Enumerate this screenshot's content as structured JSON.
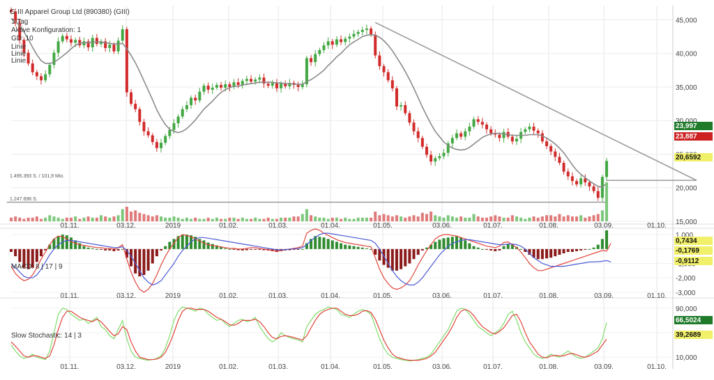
{
  "chart_data": {
    "type": "candlestick",
    "title": "G-III Apparel Group Ltd (890380) (GIII)",
    "legend_lines": [
      "1 Tag",
      "Aktive Konfiguration: 1",
      "GD: 10",
      "Linie",
      "Linie",
      "Linie"
    ],
    "x_tick_labels": [
      "01.11.",
      "03.12.",
      "2019",
      "01.02.",
      "01.03.",
      "01.04.",
      "01.05.",
      "03.06.",
      "01.07.",
      "01.08.",
      "03.09.",
      "01.10."
    ],
    "y_tick_labels": [
      "45,000",
      "40,000",
      "35,000",
      "30,000",
      "25,000",
      "20,000",
      "15,000"
    ],
    "ylim": [
      15000,
      46500
    ],
    "price_badges": [
      {
        "text": "23,997",
        "color": "#1f7a2a",
        "text_color": "#ffffff"
      },
      {
        "text": "23,887",
        "color": "#cc2222",
        "text_color": "#ffffff"
      },
      {
        "text": "20,6592",
        "color": "#f1f06a",
        "text_color": "#111111"
      }
    ],
    "volume_labels": [
      "1.495.393 S. / 101,9 Mio.",
      "1.247.696 S."
    ],
    "closes": [
      46200,
      44500,
      42000,
      40100,
      38500,
      37200,
      36600,
      36000,
      36900,
      38300,
      40100,
      41800,
      42600,
      42100,
      41600,
      42000,
      41200,
      41800,
      40900,
      42300,
      41400,
      41800,
      40800,
      41300,
      40300,
      41900,
      43600,
      34200,
      32500,
      31700,
      29800,
      28400,
      27800,
      26800,
      25900,
      26700,
      27700,
      28600,
      29600,
      30600,
      31700,
      32300,
      33400,
      33000,
      34300,
      35200,
      34600,
      34900,
      35300,
      34900,
      35400,
      35000,
      35700,
      35300,
      35900,
      36200,
      35800,
      36100,
      36400,
      35500,
      35200,
      35600,
      34800,
      35500,
      35100,
      35600,
      35300,
      35000,
      35400,
      39300,
      38700,
      39900,
      40500,
      41200,
      41800,
      41300,
      42100,
      41700,
      42200,
      42500,
      42900,
      43200,
      43500,
      43700,
      42800,
      39700,
      38100,
      37200,
      36000,
      34800,
      32100,
      32300,
      31100,
      29700,
      28400,
      27400,
      26100,
      24900,
      23900,
      24400,
      24700,
      25200,
      26600,
      27400,
      28100,
      27600,
      28400,
      29100,
      30200,
      29800,
      29400,
      28700,
      28100,
      27900,
      27400,
      28300,
      27600,
      26900,
      27300,
      28300,
      28700,
      29100,
      28500,
      28100,
      26900,
      26200,
      25400,
      24600,
      23700,
      22400,
      21700,
      21000,
      20500,
      21400,
      20800,
      20200,
      19500,
      18500,
      21600,
      23990
    ],
    "gd10": [
      45200,
      44800,
      44100,
      43200,
      42100,
      40900,
      39800,
      38900,
      38500,
      38500,
      38700,
      39100,
      39600,
      40100,
      40700,
      41200,
      41500,
      41600,
      41600,
      41700,
      41700,
      41700,
      41600,
      41500,
      41400,
      41400,
      41500,
      40700,
      39700,
      38600,
      37300,
      35900,
      34500,
      33100,
      31600,
      30400,
      29400,
      28700,
      28400,
      28200,
      28400,
      28800,
      29400,
      30100,
      30900,
      31700,
      32300,
      32900,
      33600,
      34200,
      34600,
      34900,
      35100,
      35100,
      35300,
      35400,
      35500,
      35600,
      35700,
      35700,
      35700,
      35700,
      35600,
      35600,
      35500,
      35500,
      35400,
      35400,
      35400,
      35800,
      36100,
      36500,
      37000,
      37500,
      38200,
      38800,
      39500,
      40000,
      40700,
      41300,
      41700,
      42100,
      42500,
      42700,
      42800,
      42700,
      42400,
      41900,
      41200,
      40400,
      39400,
      38400,
      37300,
      36100,
      34800,
      33400,
      32000,
      30700,
      29500,
      28400,
      27600,
      26800,
      26300,
      25900,
      25700,
      25600,
      25700,
      26000,
      26500,
      27000,
      27500,
      27800,
      28000,
      28100,
      28100,
      28000,
      27900,
      27800,
      27800,
      27800,
      27800,
      27900,
      27900,
      27900,
      27700,
      27400,
      27000,
      26500,
      25900,
      25200,
      24300,
      23400,
      22600,
      22000,
      21500,
      21000,
      20600,
      20200,
      20100,
      20660
    ],
    "trendline": {
      "from_index": 85,
      "from_value": 44600,
      "to_index": 160,
      "to_value": 21100
    },
    "horizontal_lines": [
      {
        "value": 21100,
        "from_index": 139,
        "to_index": 160
      },
      {
        "value": 17850,
        "from_index": -1,
        "to_index": 139
      }
    ],
    "volumes": [
      3,
      4,
      3,
      2,
      3,
      3,
      4,
      2,
      3,
      5,
      4,
      3,
      2,
      3,
      3,
      4,
      2,
      3,
      4,
      3,
      3,
      5,
      4,
      3,
      4,
      5,
      10,
      12,
      8,
      9,
      7,
      6,
      5,
      4,
      5,
      4,
      3,
      3,
      4,
      3,
      2,
      3,
      2,
      3,
      2,
      2,
      3,
      2,
      3,
      2,
      2,
      3,
      3,
      2,
      3,
      2,
      2,
      3,
      2,
      2,
      3,
      2,
      2,
      3,
      3,
      3,
      4,
      4,
      6,
      10,
      5,
      4,
      3,
      3,
      2,
      3,
      3,
      2,
      3,
      2,
      2,
      3,
      3,
      3,
      3,
      8,
      5,
      6,
      5,
      4,
      5,
      4,
      3,
      4,
      5,
      4,
      7,
      6,
      8,
      5,
      4,
      3,
      5,
      4,
      3,
      4,
      3,
      3,
      6,
      4,
      3,
      3,
      4,
      5,
      4,
      3,
      3,
      5,
      4,
      3,
      2,
      3,
      4,
      3,
      4,
      5,
      5,
      4,
      6,
      4,
      5,
      4,
      4,
      5,
      3,
      4,
      5,
      6,
      9,
      32
    ],
    "macd": {
      "label": "MACD: 8 | 17 | 9",
      "y_tick_labels": [
        "1,000",
        "0",
        "-1,000",
        "-2,000",
        "-3,000"
      ],
      "ylim": [
        -3200,
        1200
      ],
      "badges": [
        {
          "text": "0,7434",
          "color": "#f1f06a"
        },
        {
          "text": "-0,1769",
          "color": "#f1f06a"
        },
        {
          "text": "-0,9112",
          "color": "#f1f06a"
        }
      ],
      "hist": [
        -200,
        -500,
        -900,
        -1300,
        -1400,
        -1300,
        -900,
        -500,
        -100,
        300,
        700,
        900,
        1000,
        950,
        800,
        600,
        400,
        200,
        100,
        50,
        0,
        -50,
        -100,
        -100,
        -150,
        -100,
        0,
        -600,
        -1200,
        -1700,
        -1900,
        -1800,
        -1500,
        -1000,
        -500,
        -100,
        200,
        500,
        700,
        900,
        1000,
        1000,
        950,
        850,
        700,
        600,
        450,
        350,
        250,
        150,
        50,
        0,
        -50,
        -80,
        -100,
        -80,
        -50,
        -30,
        -50,
        -80,
        -100,
        -150,
        -200,
        -150,
        -100,
        -80,
        -50,
        -20,
        0,
        400,
        700,
        900,
        850,
        800,
        700,
        600,
        500,
        400,
        300,
        250,
        200,
        150,
        100,
        50,
        0,
        -400,
        -800,
        -1100,
        -1300,
        -1500,
        -1500,
        -1400,
        -1200,
        -1000,
        -700,
        -400,
        -100,
        100,
        300,
        500,
        650,
        750,
        800,
        850,
        900,
        800,
        600,
        400,
        200,
        100,
        0,
        -50,
        -100,
        -150,
        -100,
        200,
        350,
        300,
        150,
        0,
        -200,
        -400,
        -600,
        -700,
        -700,
        -650,
        -600,
        -500,
        -400,
        -300,
        -200,
        -200,
        -150,
        -100,
        -50,
        0,
        100,
        300,
        700,
        1300
      ],
      "line_a": [
        -1200,
        -1700,
        -2000,
        -2200,
        -2100,
        -1800,
        -1300,
        -700,
        -200,
        300,
        700,
        900,
        850,
        700,
        500,
        400,
        300,
        250,
        200,
        150,
        100,
        100,
        50,
        50,
        0,
        100,
        300,
        -700,
        -1600,
        -2300,
        -2800,
        -3000,
        -2800,
        -2400,
        -1800,
        -1100,
        -500,
        0,
        400,
        800,
        1000,
        950,
        850,
        700,
        550,
        400,
        300,
        250,
        200,
        150,
        100,
        50,
        50,
        0,
        0,
        50,
        100,
        100,
        50,
        0,
        -50,
        -100,
        -150,
        -100,
        -50,
        0,
        50,
        100,
        200,
        1100,
        1300,
        1400,
        1300,
        1100,
        950,
        800,
        650,
        550,
        450,
        400,
        350,
        300,
        250,
        200,
        150,
        -600,
        -1400,
        -2000,
        -2400,
        -2700,
        -2800,
        -2700,
        -2500,
        -2200,
        -1700,
        -1100,
        -600,
        -100,
        300,
        700,
        900,
        1000,
        1000,
        950,
        900,
        800,
        700,
        600,
        500,
        400,
        300,
        200,
        150,
        100,
        200,
        450,
        500,
        300,
        100,
        -200,
        -600,
        -1000,
        -1300,
        -1500,
        -1500,
        -1400,
        -1300,
        -1200,
        -1100,
        -1000,
        -900,
        -800,
        -700,
        -600,
        -500,
        -400,
        -300,
        -200,
        -100,
        -150,
        400
      ],
      "line_b": [
        -1000,
        -1300,
        -1600,
        -1900,
        -2000,
        -2000,
        -1800,
        -1400,
        -900,
        -400,
        0,
        300,
        500,
        600,
        600,
        550,
        500,
        450,
        400,
        350,
        300,
        250,
        200,
        150,
        100,
        100,
        150,
        -100,
        -500,
        -1000,
        -1500,
        -2000,
        -2300,
        -2500,
        -2400,
        -2200,
        -1800,
        -1400,
        -1000,
        -500,
        -100,
        200,
        500,
        700,
        800,
        800,
        750,
        700,
        650,
        600,
        550,
        500,
        450,
        400,
        350,
        300,
        250,
        200,
        150,
        100,
        50,
        0,
        -50,
        -50,
        -50,
        0,
        0,
        50,
        100,
        300,
        600,
        800,
        1000,
        1100,
        1100,
        1050,
        1000,
        950,
        900,
        850,
        800,
        750,
        700,
        650,
        600,
        400,
        0,
        -500,
        -1000,
        -1500,
        -1900,
        -2200,
        -2400,
        -2500,
        -2500,
        -2300,
        -2000,
        -1600,
        -1200,
        -800,
        -400,
        -100,
        200,
        400,
        500,
        600,
        650,
        650,
        600,
        550,
        500,
        450,
        400,
        350,
        300,
        300,
        350,
        350,
        300,
        200,
        0,
        -300,
        -600,
        -800,
        -1000,
        -1100,
        -1200,
        -1200,
        -1200,
        -1200,
        -1150,
        -1100,
        -1050,
        -1000,
        -950,
        -900,
        -900,
        -880,
        -850,
        -800,
        -900
      ]
    },
    "stochastic": {
      "label": "Slow Stochastic: 14 | 3",
      "y_tick_labels": [
        "90,000",
        "50,000",
        "10,000"
      ],
      "ylim": [
        0,
        100
      ],
      "badges": [
        {
          "text": "66,5024",
          "color": "#1f7a2a"
        },
        {
          "text": "39,2689",
          "color": "#f1f06a"
        }
      ],
      "k": [
        30,
        20,
        12,
        8,
        10,
        15,
        10,
        8,
        6,
        20,
        50,
        80,
        90,
        88,
        80,
        75,
        70,
        72,
        65,
        70,
        75,
        60,
        55,
        45,
        40,
        55,
        70,
        40,
        20,
        10,
        8,
        6,
        5,
        6,
        8,
        12,
        25,
        45,
        70,
        85,
        92,
        90,
        88,
        85,
        90,
        88,
        80,
        75,
        70,
        72,
        65,
        60,
        65,
        70,
        72,
        68,
        70,
        75,
        60,
        50,
        40,
        35,
        40,
        50,
        45,
        42,
        40,
        38,
        35,
        60,
        70,
        80,
        85,
        88,
        92,
        90,
        88,
        80,
        78,
        75,
        80,
        85,
        88,
        85,
        80,
        60,
        40,
        25,
        15,
        10,
        8,
        6,
        5,
        4,
        5,
        6,
        8,
        10,
        15,
        25,
        35,
        45,
        55,
        70,
        85,
        90,
        88,
        80,
        70,
        60,
        55,
        50,
        45,
        50,
        55,
        65,
        80,
        85,
        70,
        50,
        35,
        25,
        15,
        10,
        8,
        10,
        15,
        12,
        10,
        15,
        20,
        15,
        10,
        8,
        10,
        15,
        20,
        25,
        40,
        66.5
      ],
      "d": [
        35,
        28,
        20,
        12,
        10,
        12,
        12,
        10,
        8,
        12,
        30,
        55,
        75,
        85,
        85,
        80,
        75,
        72,
        70,
        68,
        72,
        68,
        60,
        52,
        45,
        48,
        60,
        55,
        35,
        20,
        10,
        8,
        6,
        6,
        7,
        10,
        18,
        32,
        50,
        70,
        85,
        90,
        90,
        88,
        88,
        88,
        85,
        80,
        75,
        72,
        68,
        63,
        62,
        65,
        70,
        70,
        70,
        72,
        68,
        60,
        50,
        42,
        40,
        44,
        45,
        44,
        42,
        40,
        38,
        45,
        58,
        70,
        80,
        85,
        88,
        90,
        90,
        85,
        80,
        78,
        78,
        80,
        85,
        86,
        83,
        72,
        55,
        38,
        25,
        15,
        10,
        8,
        6,
        5,
        5,
        5,
        6,
        8,
        12,
        18,
        28,
        38,
        48,
        60,
        75,
        85,
        88,
        85,
        78,
        68,
        60,
        55,
        50,
        48,
        52,
        58,
        68,
        78,
        80,
        68,
        50,
        35,
        25,
        15,
        10,
        9,
        12,
        13,
        12,
        12,
        15,
        16,
        14,
        11,
        10,
        12,
        16,
        20,
        30,
        39.3
      ]
    }
  }
}
